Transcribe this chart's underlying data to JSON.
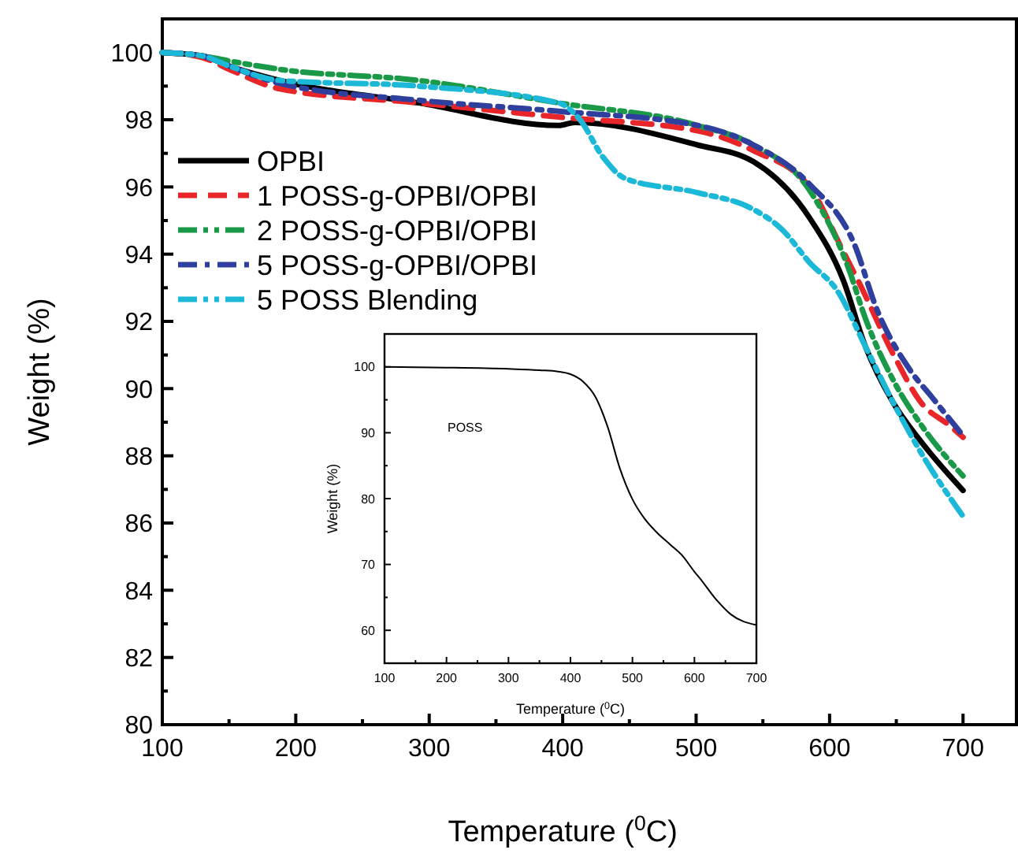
{
  "chart_data": [
    {
      "type": "line",
      "xlabel": "Temperature ($^{0}$C)",
      "ylabel": "Weight (%)",
      "xlim": [
        100,
        740
      ],
      "ylim": [
        80,
        101
      ],
      "xticks": [
        100,
        {
          "value": 150,
          "label": null
        },
        200,
        {
          "value": 250,
          "label": null
        },
        300,
        {
          "value": 350,
          "label": null
        },
        400,
        {
          "value": 450,
          "label": null
        },
        500,
        {
          "value": 550,
          "label": null
        },
        600,
        {
          "value": 650,
          "label": null
        },
        700
      ],
      "yticks": [
        80,
        {
          "value": 81,
          "label": null
        },
        82,
        {
          "value": 83,
          "label": null
        },
        84,
        {
          "value": 85,
          "label": null
        },
        86,
        {
          "value": 87,
          "label": null
        },
        88,
        {
          "value": 89,
          "label": null
        },
        90,
        {
          "value": 91,
          "label": null
        },
        92,
        {
          "value": 93,
          "label": null
        },
        94,
        {
          "value": 95,
          "label": null
        },
        96,
        {
          "value": 97,
          "label": null
        },
        98,
        {
          "value": 99,
          "label": null
        },
        100
      ],
      "legend": "top left",
      "grid": false,
      "series": [
        {
          "name": "OPBI",
          "color": "#000000",
          "line_style": "solid",
          "x": [
            100,
            130,
            150,
            188,
            292,
            397,
            409,
            501,
            543,
            585,
            610,
            627,
            648,
            669,
            700
          ],
          "values": [
            100,
            99.9,
            99.6,
            99.17,
            98.5,
            97.83,
            97.92,
            97.25,
            96.75,
            95.08,
            93.25,
            91.24,
            89.56,
            88.4,
            86.97
          ]
        },
        {
          "name": "1 POSS-g-OPBI/OPBI",
          "color": "#e8262a",
          "line_style": "dashed",
          "x": [
            100,
            130,
            150,
            188,
            292,
            397,
            501,
            543,
            585,
            610,
            623,
            648,
            669,
            690,
            700
          ],
          "values": [
            100,
            99.85,
            99.5,
            98.92,
            98.5,
            98.08,
            97.67,
            97.08,
            96.0,
            94.1,
            93.08,
            91.0,
            89.56,
            88.9,
            88.55
          ]
        },
        {
          "name": "2 POSS-g-OPBI/OPBI",
          "color": "#1a9a48",
          "line_style": "dashdotdot",
          "x": [
            100,
            130,
            150,
            188,
            292,
            397,
            501,
            543,
            585,
            614,
            627,
            648,
            669,
            700
          ],
          "values": [
            100,
            99.9,
            99.75,
            99.5,
            99.17,
            98.5,
            97.83,
            97.25,
            95.9,
            93.6,
            92.07,
            90.23,
            88.9,
            87.4
          ]
        },
        {
          "name": "5 POSS-g-OPBI/OPBI",
          "color": "#2e3f9e",
          "line_style": "dashdot",
          "x": [
            100,
            130,
            150,
            188,
            292,
            397,
            501,
            543,
            585,
            619,
            635,
            660,
            677,
            700
          ],
          "values": [
            100,
            99.9,
            99.6,
            99.08,
            98.58,
            98.25,
            97.83,
            97.25,
            96.08,
            94.25,
            92.4,
            90.57,
            89.73,
            88.6
          ]
        },
        {
          "name": "5 POSS Blending",
          "color": "#1cb8d8",
          "line_style": "dashdotdot",
          "x": [
            100,
            130,
            150,
            188,
            292,
            397,
            413,
            430,
            447,
            501,
            543,
            564,
            585,
            606,
            627,
            648,
            669,
            700
          ],
          "values": [
            100,
            99.9,
            99.6,
            99.17,
            99.0,
            98.5,
            98.0,
            96.9,
            96.25,
            95.83,
            95.33,
            94.75,
            93.75,
            92.9,
            91.24,
            89.56,
            88.06,
            86.2
          ]
        }
      ]
    },
    {
      "type": "line",
      "xlabel": "Temperature ($^{0}$C)",
      "ylabel": "Weight (%)",
      "xlim": [
        100,
        700
      ],
      "ylim": [
        55,
        105
      ],
      "annotations": [
        "POSS"
      ],
      "xticks": [
        100,
        {
          "value": 150,
          "label": null
        },
        200,
        {
          "value": 250,
          "label": null
        },
        300,
        {
          "value": 350,
          "label": null
        },
        400,
        {
          "value": 450,
          "label": null
        },
        500,
        {
          "value": 550,
          "label": null
        },
        600,
        {
          "value": 650,
          "label": null
        },
        700
      ],
      "yticks": [
        60,
        {
          "value": 65,
          "label": null
        },
        70,
        {
          "value": 75,
          "label": null
        },
        80,
        {
          "value": 85,
          "label": null
        },
        90,
        {
          "value": 95,
          "label": null
        },
        100
      ],
      "grid": false,
      "series": [
        {
          "color": "#000000",
          "line_style": "solid",
          "x": [
            100,
            200,
            300,
            350,
            380,
            400,
            420,
            440,
            460,
            480,
            500,
            520,
            540,
            560,
            580,
            600,
            608,
            634,
            659,
            700
          ],
          "values": [
            100,
            99.9,
            99.7,
            99.5,
            99.3,
            98.9,
            97.8,
            95.5,
            90.9,
            84.5,
            79.9,
            76.9,
            74.8,
            73.1,
            71.4,
            68.9,
            68.0,
            64.8,
            62.4,
            60.8
          ]
        }
      ]
    }
  ]
}
